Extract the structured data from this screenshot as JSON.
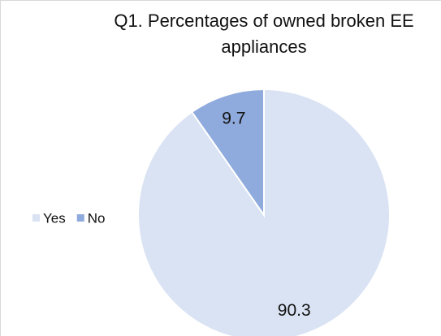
{
  "chart_data": {
    "type": "pie",
    "title": "Q1. Percentages of owned broken EE appliances",
    "categories": [
      "Yes",
      "No"
    ],
    "values": [
      90.3,
      9.7
    ],
    "colors": [
      "#dae3f3",
      "#8faadc"
    ],
    "legend": "left"
  }
}
